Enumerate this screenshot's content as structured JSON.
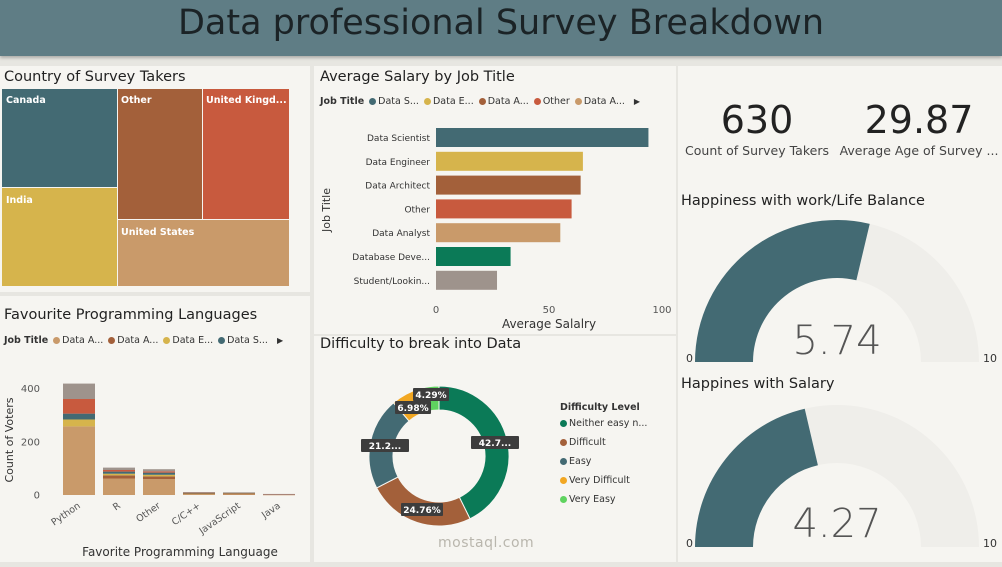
{
  "header": {
    "title": "Data professional Survey Breakdown"
  },
  "colors": {
    "teal": "#436a73",
    "gold": "#d6b44c",
    "brown": "#a3603a",
    "orange": "#c85a3e",
    "tan": "#c99a6a",
    "green": "#0b7a57",
    "gray": "#9e938c",
    "yellow": "#f2a722",
    "lightgreen": "#5fd35f",
    "gauge_bg": "#efeeea"
  },
  "country": {
    "title": "Country of Survey Takers",
    "tiles": [
      {
        "label": "Canada",
        "color": "#436a73"
      },
      {
        "label": "India",
        "color": "#d6b44c"
      },
      {
        "label": "Other",
        "color": "#a3603a"
      },
      {
        "label": "United Kingd...",
        "color": "#c85a3e"
      },
      {
        "label": "United States",
        "color": "#c99a6a"
      }
    ]
  },
  "salary": {
    "title": "Average Salary by Job Title",
    "legend_title": "Job Title",
    "legend": [
      {
        "label": "Data S...",
        "color": "#436a73"
      },
      {
        "label": "Data E...",
        "color": "#d6b44c"
      },
      {
        "label": "Data A...",
        "color": "#a3603a"
      },
      {
        "label": "Other",
        "color": "#c85a3e"
      },
      {
        "label": "Data A...",
        "color": "#c99a6a"
      }
    ],
    "xlabel": "Average Salalry",
    "ylabel": "Job Title",
    "xticks": [
      "0",
      "50",
      "100"
    ]
  },
  "kpi": {
    "count_value": "630",
    "count_label": "Count of Survey Takers",
    "age_value": "29.87",
    "age_label": "Average Age of Survey ..."
  },
  "gauge_work": {
    "title": "Happiness with work/Life Balance",
    "value_text": "5.74",
    "min": "0",
    "max": "10"
  },
  "gauge_salary": {
    "title": "Happines with Salary",
    "value_text": "4.27",
    "min": "0",
    "max": "10"
  },
  "languages": {
    "title": "Favourite Programming Languages",
    "legend_title": "Job Title",
    "legend": [
      {
        "label": "Data A...",
        "color": "#c99a6a"
      },
      {
        "label": "Data A...",
        "color": "#a3603a"
      },
      {
        "label": "Data E...",
        "color": "#d6b44c"
      },
      {
        "label": "Data S...",
        "color": "#436a73"
      }
    ],
    "xlabel": "Favorite Programming Language",
    "ylabel": "Count of Voters",
    "yticks": [
      "0",
      "200",
      "400"
    ]
  },
  "difficulty": {
    "title": "Difficulty to break into Data",
    "legend_title": "Difficulty Level",
    "legend": [
      {
        "label": "Neither easy n...",
        "color": "#0b7a57"
      },
      {
        "label": "Difficult",
        "color": "#a3603a"
      },
      {
        "label": "Easy",
        "color": "#436a73"
      },
      {
        "label": "Very Difficult",
        "color": "#f2a722"
      },
      {
        "label": "Very Easy",
        "color": "#5fd35f"
      }
    ],
    "labels": [
      "42.7...",
      "24.76%",
      "21.2...",
      "6.98%",
      "4.29%"
    ]
  },
  "watermark": {
    "text": "mostaql.com"
  },
  "chart_data": [
    {
      "type": "treemap",
      "title": "Country of Survey Takers",
      "categories": [
        "Canada",
        "India",
        "Other",
        "United Kingd...",
        "United States"
      ],
      "values": [
        0.18,
        0.18,
        0.2,
        0.21,
        0.23
      ]
    },
    {
      "type": "bar",
      "orientation": "horizontal",
      "title": "Average Salary by Job Title",
      "categories": [
        "Data Scientist",
        "Data Engineer",
        "Data Architect",
        "Other",
        "Data Analyst",
        "Database Deve...",
        "Student/Lookin..."
      ],
      "values": [
        94,
        65,
        64,
        60,
        55,
        33,
        27
      ],
      "colors": [
        "#436a73",
        "#d6b44c",
        "#a3603a",
        "#c85a3e",
        "#c99a6a",
        "#0b7a57",
        "#9e938c"
      ],
      "xlabel": "Average Salalry",
      "ylabel": "Job Title",
      "xlim": [
        0,
        100
      ]
    },
    {
      "type": "bar",
      "stacked": true,
      "title": "Favourite Programming Languages",
      "categories": [
        "Python",
        "R",
        "Other",
        "C/C++",
        "JavaScript",
        "Java"
      ],
      "series": [
        {
          "name": "Data A...",
          "color": "#c99a6a",
          "values": [
            258,
            62,
            60,
            6,
            5,
            2
          ]
        },
        {
          "name": "Data A...",
          "color": "#a3603a",
          "values": [
            0,
            12,
            10,
            1,
            1,
            0
          ]
        },
        {
          "name": "Data E...",
          "color": "#d6b44c",
          "values": [
            26,
            6,
            6,
            1,
            1,
            0
          ]
        },
        {
          "name": "Data S...",
          "color": "#436a73",
          "values": [
            22,
            8,
            8,
            1,
            1,
            0
          ]
        },
        {
          "name": "",
          "color": "#c85a3e",
          "values": [
            55,
            6,
            5,
            1,
            1,
            1
          ]
        },
        {
          "name": "",
          "color": "#9e938c",
          "values": [
            58,
            9,
            8,
            1,
            1,
            1
          ]
        }
      ],
      "xlabel": "Favorite Programming Language",
      "ylabel": "Count of Voters",
      "ylim": [
        0,
        450
      ]
    },
    {
      "type": "pie",
      "donut": true,
      "title": "Difficulty to break into Data",
      "categories": [
        "Neither easy n...",
        "Difficult",
        "Easy",
        "Very Difficult",
        "Very Easy"
      ],
      "values": [
        42.7,
        24.76,
        21.27,
        6.98,
        4.29
      ],
      "colors": [
        "#0b7a57",
        "#a3603a",
        "#436a73",
        "#f2a722",
        "#5fd35f"
      ]
    },
    {
      "type": "gauge",
      "title": "Happiness with work/Life Balance",
      "value": 5.74,
      "min": 0,
      "max": 10
    },
    {
      "type": "gauge",
      "title": "Happines with Salary",
      "value": 4.27,
      "min": 0,
      "max": 10
    }
  ]
}
